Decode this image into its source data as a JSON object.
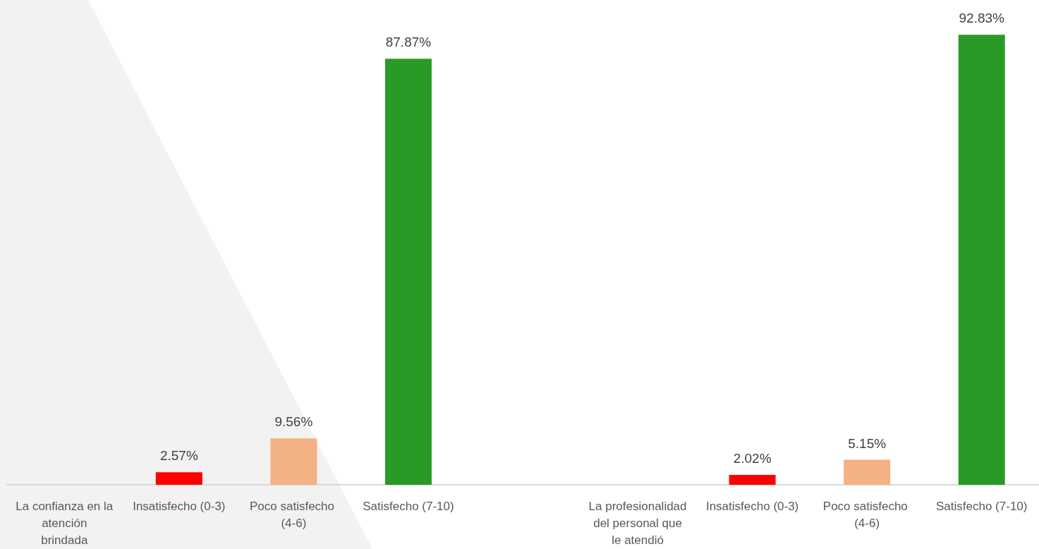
{
  "chart_data": {
    "type": "bar",
    "categories": [
      "La confianza en la atención brindada",
      "Insatisfecho (0-3)",
      "Poco satisfecho (4-6)",
      "Satisfecho (7-10)",
      null,
      "La profesionalidad del personal que le atendió",
      "Insatisfecho (0-3)",
      "Poco satisfecho (4-6)",
      "Satisfecho (7-10)"
    ],
    "values": [
      null,
      2.57,
      9.56,
      87.87,
      null,
      null,
      2.02,
      5.15,
      92.83
    ],
    "colors": [
      "#ff0000",
      "#ff0000",
      "#f4b183",
      "#2a9a27",
      "#ff0000",
      "#ff0000",
      "#ff0000",
      "#f4b183",
      "#2a9a27"
    ],
    "value_labels": [
      null,
      "2.57%",
      "9.56%",
      "87.87%",
      null,
      null,
      "2.02%",
      "5.15%",
      "92.83%"
    ]
  }
}
